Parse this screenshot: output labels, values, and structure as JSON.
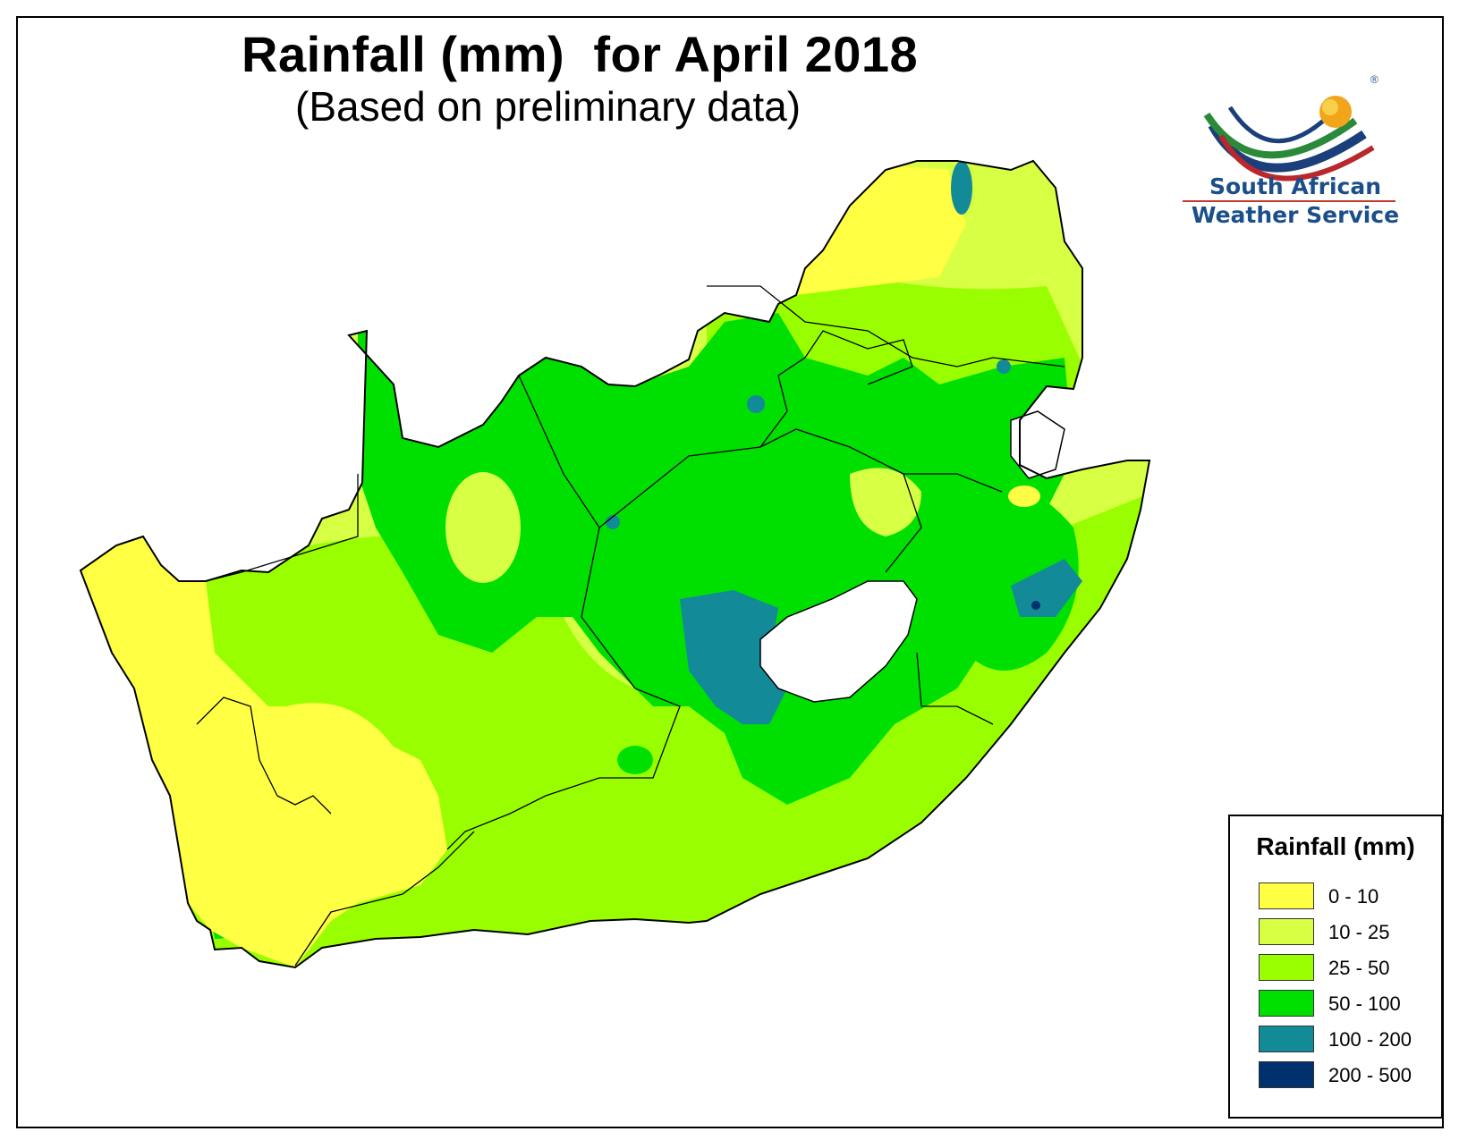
{
  "map": {
    "title": "Rainfall (mm)  for April 2018",
    "subtitle": "(Based on preliminary data)"
  },
  "logo": {
    "line1": "South African",
    "line2": "Weather Service",
    "mark": "®"
  },
  "legend": {
    "title": "Rainfall (mm)",
    "items": [
      {
        "label": "0 - 10",
        "color": "#ffff44"
      },
      {
        "label": "10 - 25",
        "color": "#d7ff44"
      },
      {
        "label": "25 - 50",
        "color": "#99ff00"
      },
      {
        "label": "50 - 100",
        "color": "#00e000"
      },
      {
        "label": "100 - 200",
        "color": "#138a98"
      },
      {
        "label": "200 - 500",
        "color": "#00306e"
      }
    ]
  },
  "colors": {
    "c0_10": "#ffff44",
    "c10_25": "#d7ff44",
    "c25_50": "#99ff00",
    "c50_100": "#00e000",
    "c100_200": "#138a98",
    "c200_500": "#00306e",
    "border": "#000000"
  }
}
